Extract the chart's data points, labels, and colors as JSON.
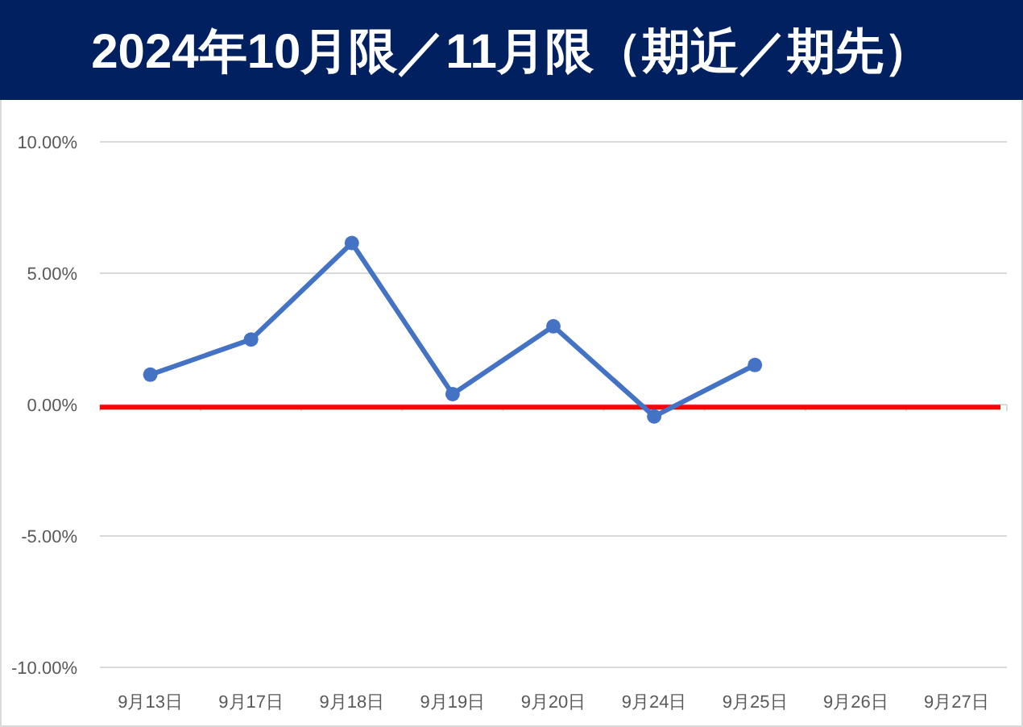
{
  "chart_data": {
    "type": "line",
    "title": "2024年10月限／11月限（期近／期先）",
    "categories": [
      "9月13日",
      "9月17日",
      "9月18日",
      "9月19日",
      "9月20日",
      "9月24日",
      "9月25日",
      "9月26日",
      "9月27日"
    ],
    "series": [
      {
        "color": "#4472c4",
        "values": [
          1.14,
          2.48,
          6.15,
          0.4,
          2.98,
          -0.45,
          1.51,
          null,
          null
        ]
      }
    ],
    "ylim": [
      -10,
      10
    ],
    "yticks": [
      {
        "value": -10,
        "label": "-10.00%"
      },
      {
        "value": -5,
        "label": "-5.00%"
      },
      {
        "value": 0,
        "label": "0.00%"
      },
      {
        "value": 5,
        "label": "5.00%"
      },
      {
        "value": 10,
        "label": "10.00%"
      }
    ],
    "ref_lines": [
      {
        "axis": "y",
        "value": -0.1,
        "color": "#ff0000"
      }
    ],
    "grid": "y",
    "marker": "circle",
    "line_style": "solid"
  }
}
